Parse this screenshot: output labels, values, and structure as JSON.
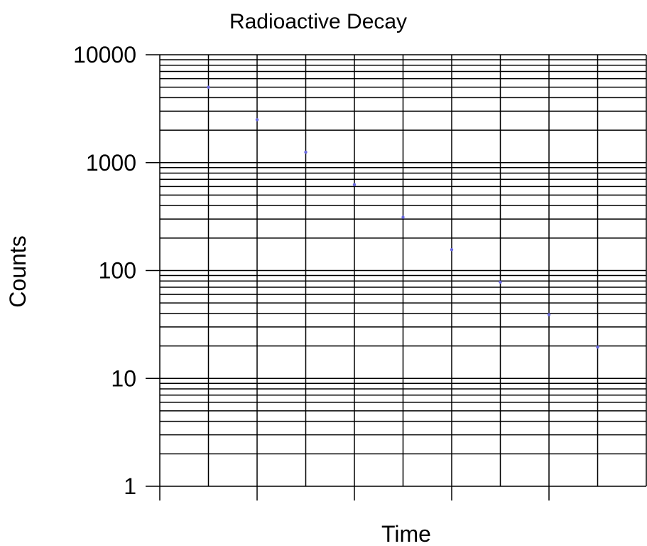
{
  "chart_data": {
    "type": "scatter",
    "title": "Radioactive Decay",
    "xlabel": "Time",
    "ylabel": "Counts",
    "y_scale": "log",
    "ylim": [
      1,
      10000
    ],
    "y_ticks": [
      "10000",
      "1000",
      "100",
      "10",
      "1"
    ],
    "xlim": [
      0,
      10
    ],
    "x_ticks_labeled": false,
    "grid": true,
    "point_color": "#6a6ae0",
    "series": [
      {
        "x": [
          1,
          2,
          3,
          4,
          5,
          6,
          7,
          8,
          9
        ],
        "y": [
          5000,
          2500,
          1250,
          625,
          312,
          156,
          78,
          39,
          19.5
        ]
      }
    ]
  }
}
